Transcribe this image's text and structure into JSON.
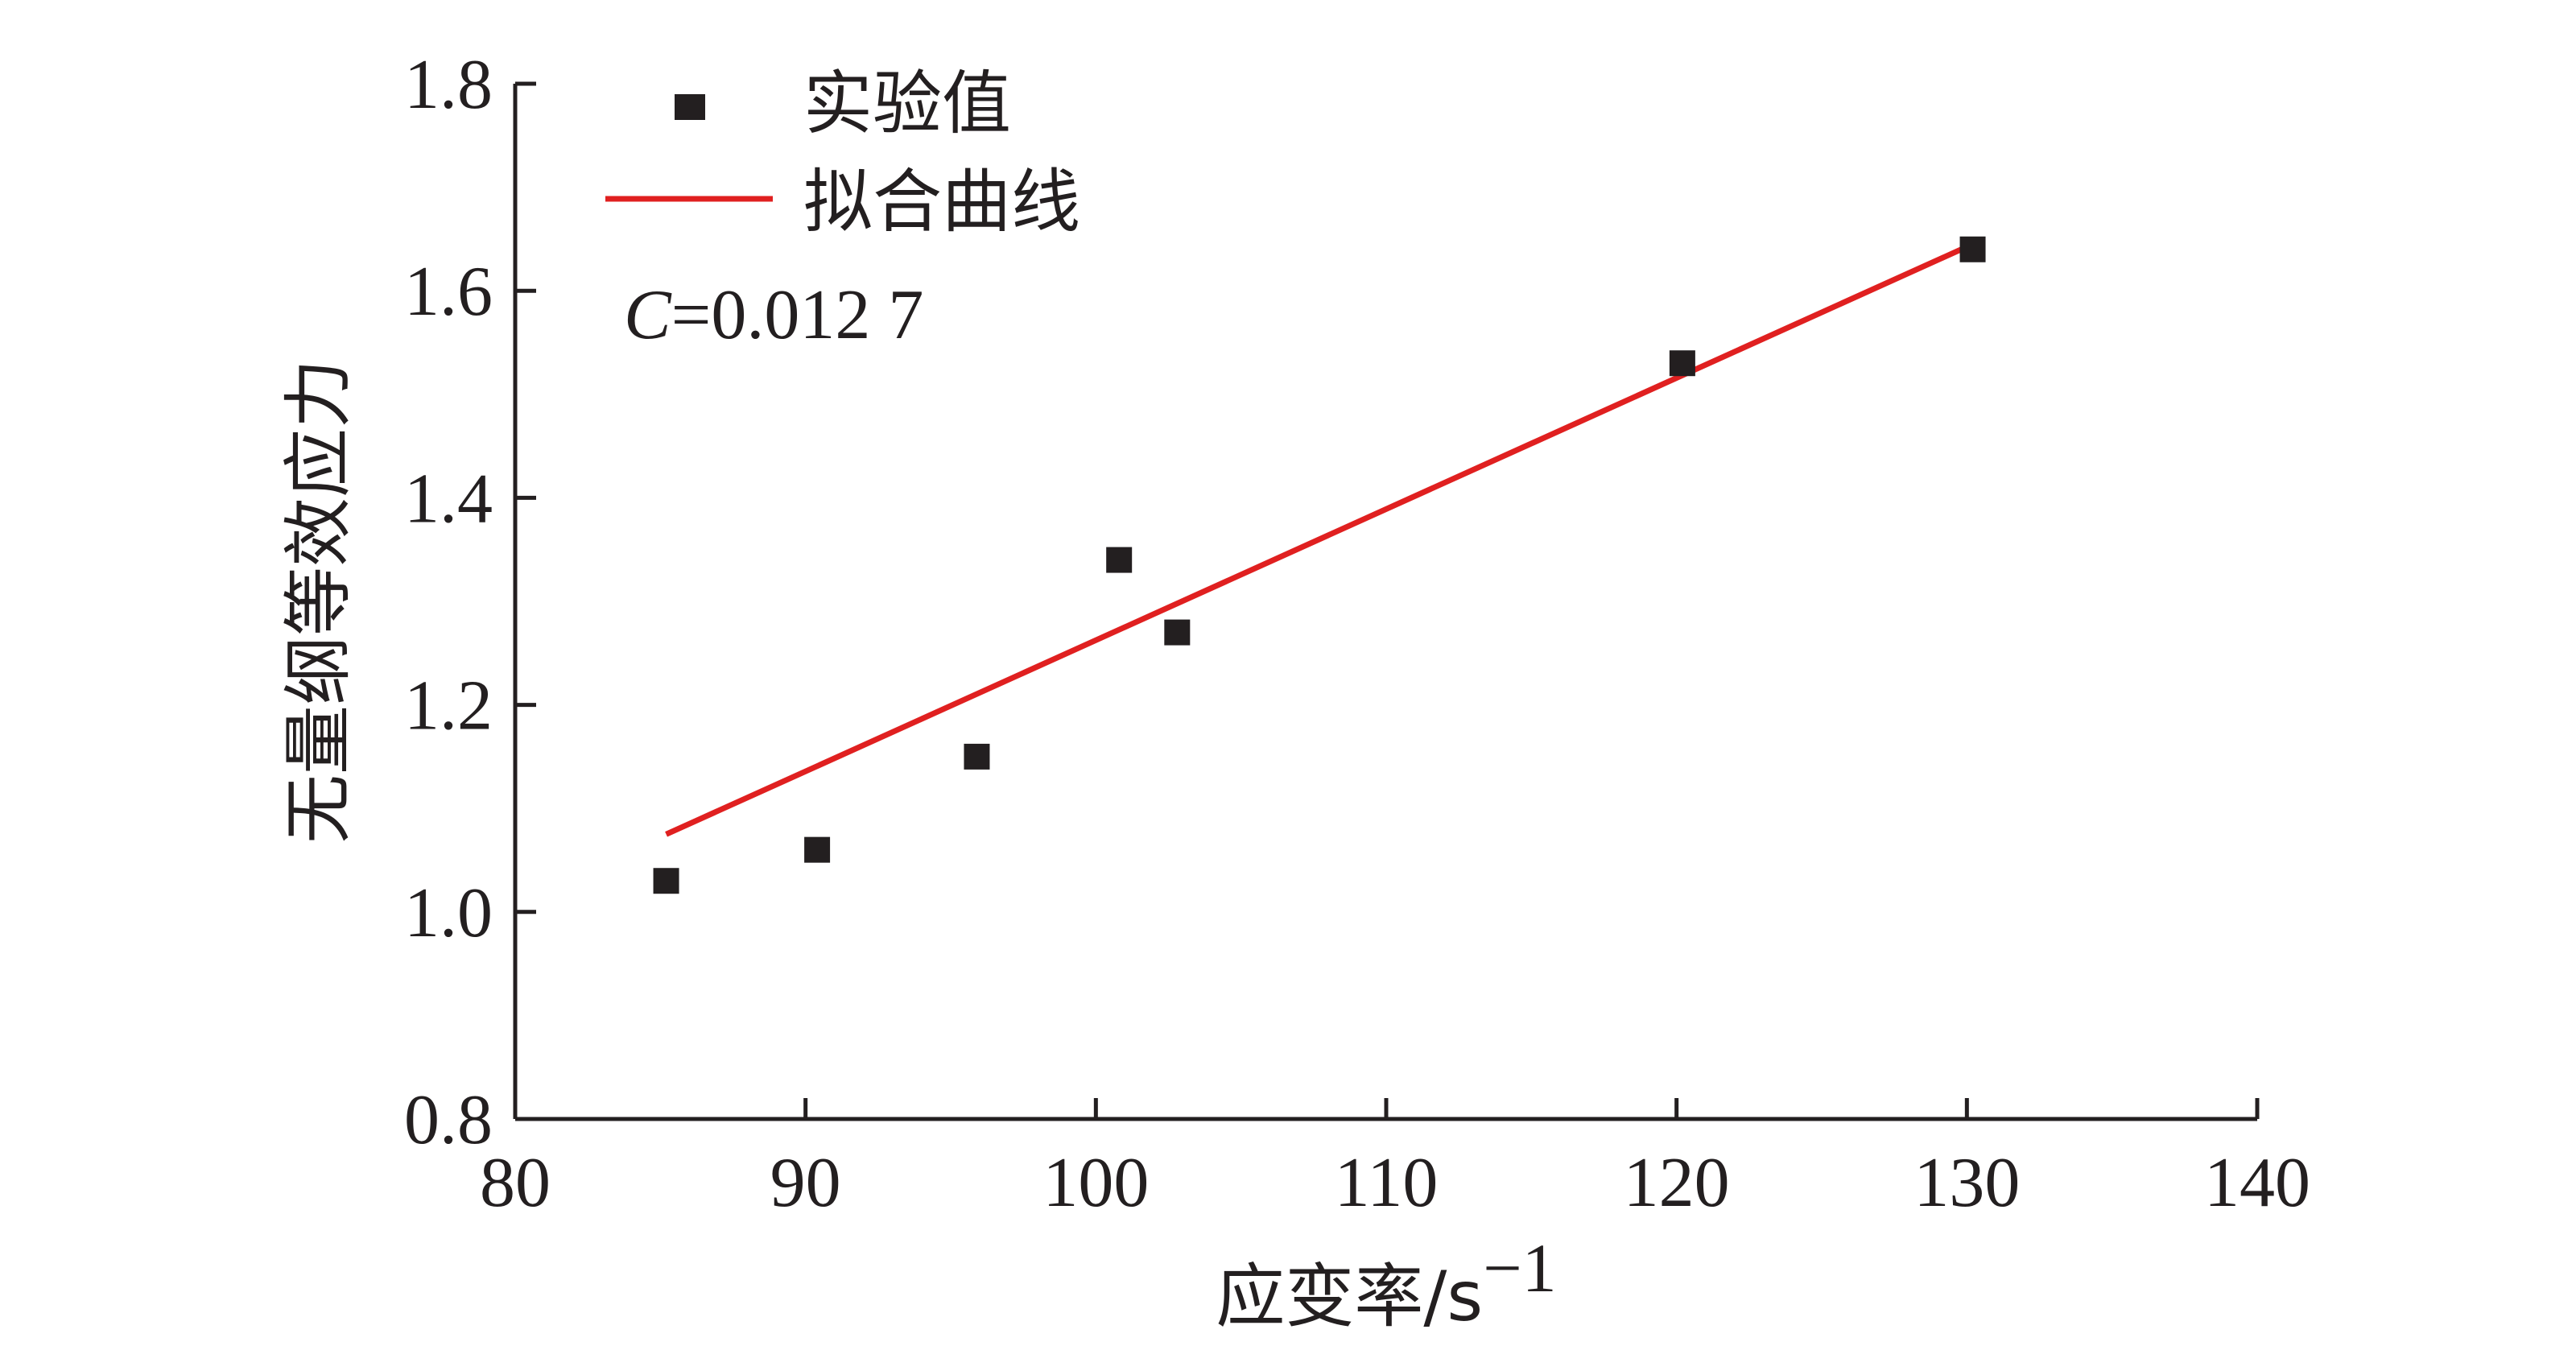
{
  "chart_data": {
    "type": "scatter",
    "xlabel": "应变率/s",
    "xlabel_sup": "−1",
    "ylabel": "无量纲等效应力",
    "xlim": [
      80,
      140
    ],
    "ylim": [
      0.8,
      1.8
    ],
    "xticks": [
      "80",
      "90",
      "100",
      "110",
      "120",
      "130",
      "140"
    ],
    "yticks": [
      "0.8",
      "1.0",
      "1.2",
      "1.4",
      "1.6",
      "1.8"
    ],
    "grid": false,
    "legend_position": "top-left",
    "series": [
      {
        "name": "实验值",
        "kind": "scatter",
        "color": "#231f20",
        "x": [
          85.2,
          90.4,
          95.9,
          100.8,
          102.8,
          120.2,
          130.2
        ],
        "y": [
          1.03,
          1.06,
          1.15,
          1.34,
          1.27,
          1.53,
          1.64
        ]
      },
      {
        "name": "拟合曲线",
        "kind": "line",
        "color": "#e02020",
        "x": [
          85.2,
          130.2
        ],
        "y": [
          1.075,
          1.645
        ]
      }
    ],
    "annotation": {
      "prefix": "C",
      "value": "=0.012 7"
    }
  }
}
